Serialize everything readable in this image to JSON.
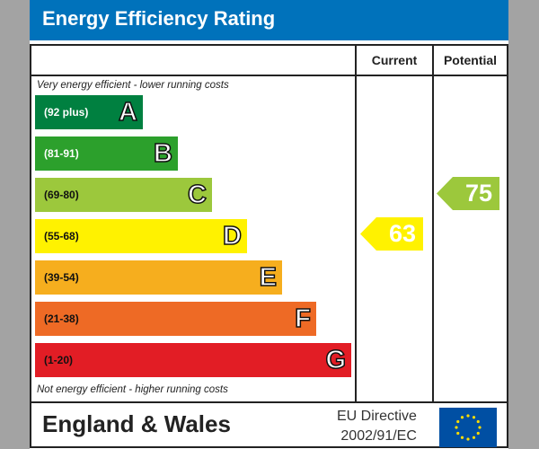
{
  "title": "Energy Efficiency Rating",
  "chart_data": {
    "type": "bar",
    "title": "Energy Efficiency Rating",
    "columns": [
      "Current",
      "Potential"
    ],
    "top_note": "Very energy efficient - lower running costs",
    "bottom_note": "Not energy efficient - higher running costs",
    "bands": [
      {
        "letter": "A",
        "range": "(92 plus)",
        "color": "#008040",
        "text_color": "#ffffff"
      },
      {
        "letter": "B",
        "range": "(81-91)",
        "color": "#2ca02c",
        "text_color": "#ffffff"
      },
      {
        "letter": "C",
        "range": "(69-80)",
        "color": "#9cc83c",
        "text_color": "#111111"
      },
      {
        "letter": "D",
        "range": "(55-68)",
        "color": "#fff200",
        "text_color": "#111111"
      },
      {
        "letter": "E",
        "range": "(39-54)",
        "color": "#f6ae1e",
        "text_color": "#111111"
      },
      {
        "letter": "F",
        "range": "(21-38)",
        "color": "#ee6a25",
        "text_color": "#111111"
      },
      {
        "letter": "G",
        "range": "(1-20)",
        "color": "#e21d25",
        "text_color": "#111111"
      }
    ],
    "current": {
      "value": "63",
      "band": "D",
      "color": "#fff200"
    },
    "potential": {
      "value": "75",
      "band": "C",
      "color": "#9cc83c"
    }
  },
  "footer": {
    "region": "England & Wales",
    "directive_line1": "EU Directive",
    "directive_line2": "2002/91/EC",
    "flag_icon": "eu-flag-icon"
  }
}
